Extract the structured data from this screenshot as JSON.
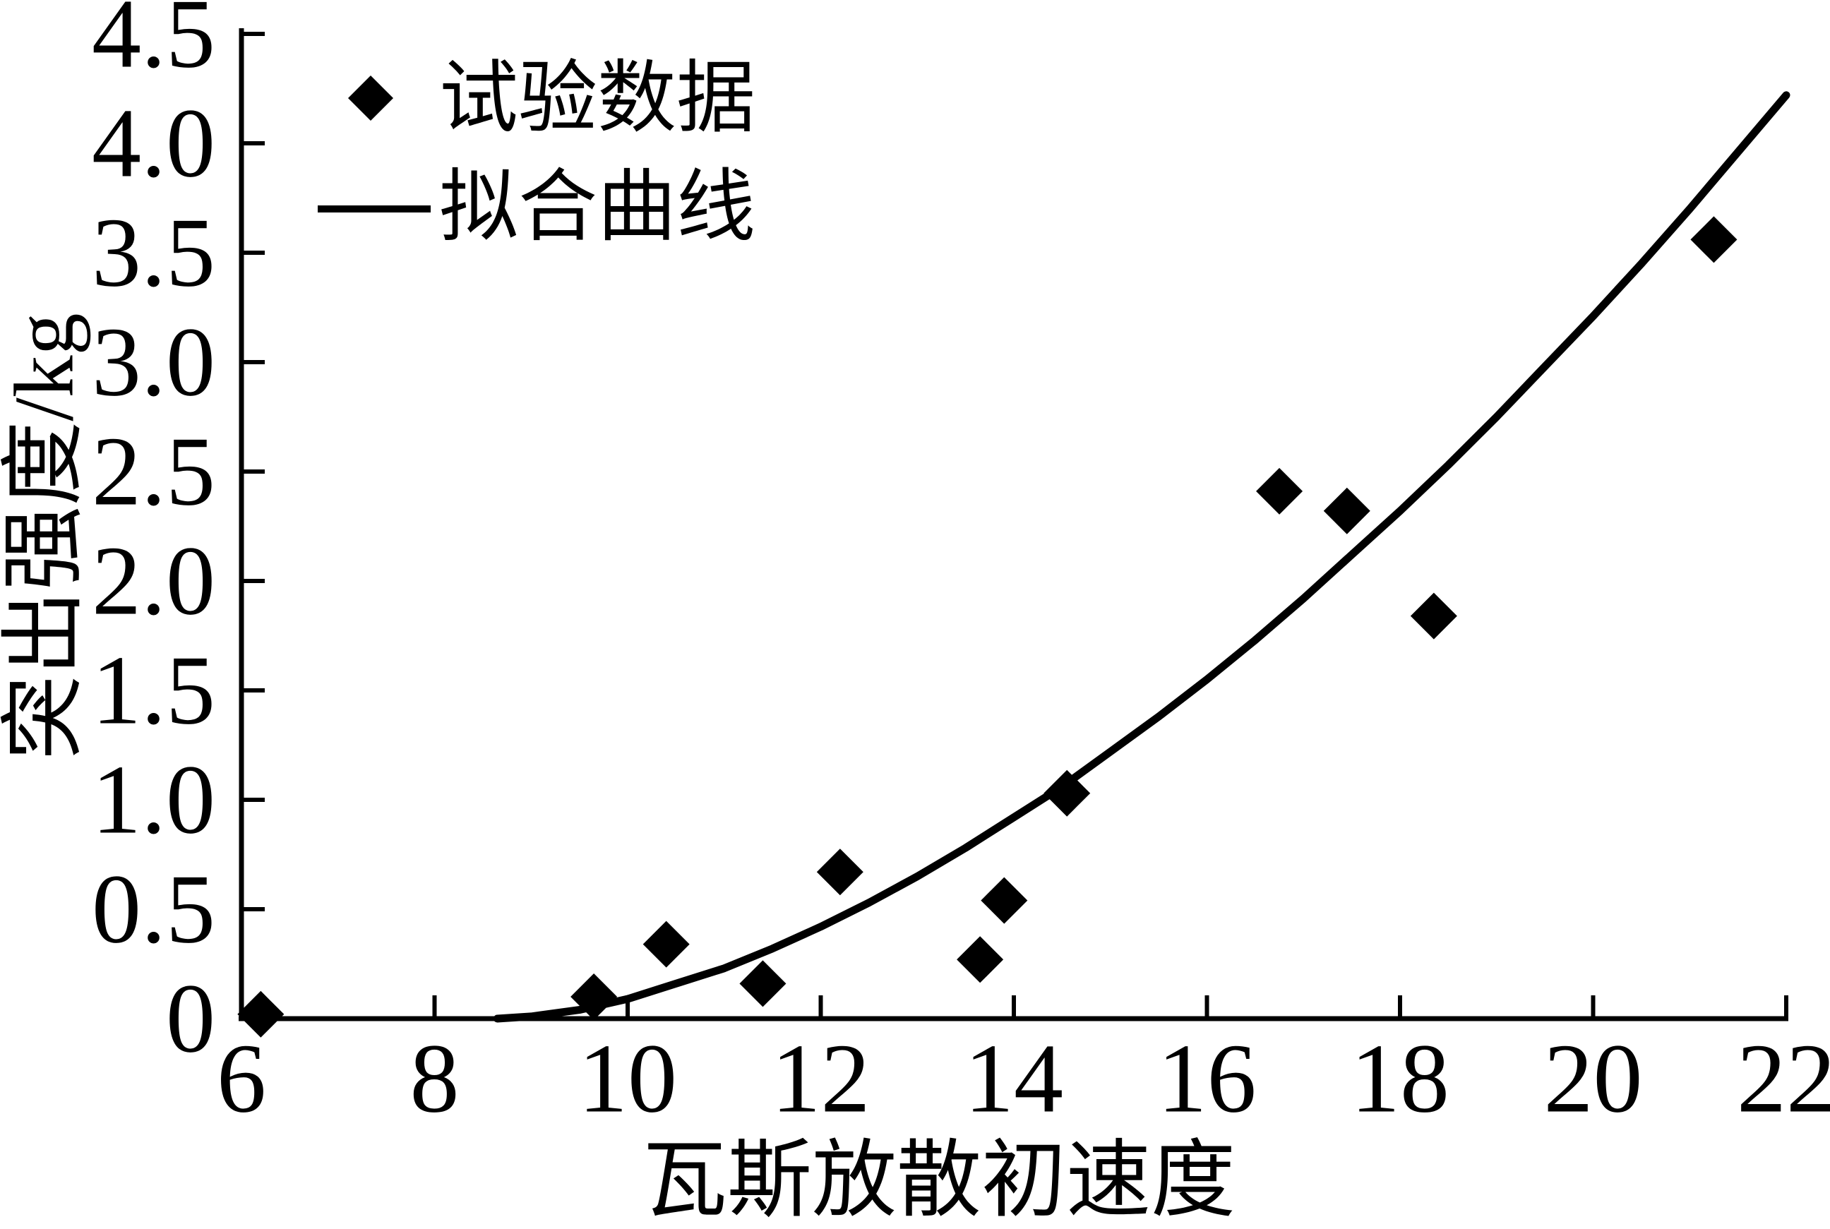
{
  "figure": {
    "background": "#ffffff",
    "ink": "#000000"
  },
  "legend": {
    "items": [
      {
        "marker": "diamond",
        "label": "试验数据"
      },
      {
        "marker": "line",
        "label": "拟合曲线"
      }
    ]
  },
  "chart_data": {
    "type": "scatter",
    "title": "",
    "xlabel": "瓦斯放散初速度",
    "ylabel": "突出强度/kg",
    "xlim": [
      6,
      22
    ],
    "ylim": [
      0,
      4.5
    ],
    "x_ticks": [
      6,
      8,
      10,
      12,
      14,
      16,
      18,
      20,
      22
    ],
    "x_tick_labels": [
      "6",
      "8",
      "10",
      "12",
      "14",
      "16",
      "18",
      "20",
      "22"
    ],
    "y_ticks": [
      0,
      0.5,
      1.0,
      1.5,
      2.0,
      2.5,
      3.0,
      3.5,
      4.0,
      4.5
    ],
    "y_tick_labels": [
      "0",
      "0.5",
      "1.0",
      "1.5",
      "2.0",
      "2.5",
      "3.0",
      "3.5",
      "4.0",
      "4.5"
    ],
    "grid": false,
    "legend_position": "top-left",
    "series": [
      {
        "name": "试验数据",
        "type": "scatter",
        "marker": "diamond",
        "color": "#000000",
        "points": [
          [
            6.2,
            0.02
          ],
          [
            9.65,
            0.1
          ],
          [
            10.4,
            0.34
          ],
          [
            11.4,
            0.16
          ],
          [
            12.2,
            0.67
          ],
          [
            13.65,
            0.27
          ],
          [
            13.9,
            0.54
          ],
          [
            14.55,
            1.03
          ],
          [
            16.75,
            2.41
          ],
          [
            17.45,
            2.32
          ],
          [
            18.35,
            1.84
          ],
          [
            21.25,
            3.56
          ]
        ]
      },
      {
        "name": "拟合曲线",
        "type": "line",
        "color": "#000000",
        "points": [
          [
            8.65,
            0.0
          ],
          [
            9.0,
            0.01
          ],
          [
            9.5,
            0.04
          ],
          [
            10.0,
            0.09
          ],
          [
            10.5,
            0.16
          ],
          [
            11.0,
            0.23
          ],
          [
            11.5,
            0.32
          ],
          [
            12.0,
            0.42
          ],
          [
            12.5,
            0.53
          ],
          [
            13.0,
            0.65
          ],
          [
            13.5,
            0.78
          ],
          [
            14.0,
            0.92
          ],
          [
            14.5,
            1.06
          ],
          [
            15.0,
            1.22
          ],
          [
            15.5,
            1.38
          ],
          [
            16.0,
            1.55
          ],
          [
            16.5,
            1.73
          ],
          [
            17.0,
            1.92
          ],
          [
            17.5,
            2.12
          ],
          [
            18.0,
            2.32
          ],
          [
            18.5,
            2.53
          ],
          [
            19.0,
            2.75
          ],
          [
            19.5,
            2.98
          ],
          [
            20.0,
            3.21
          ],
          [
            20.5,
            3.45
          ],
          [
            21.0,
            3.7
          ],
          [
            21.5,
            3.96
          ],
          [
            22.0,
            4.22
          ]
        ]
      }
    ]
  }
}
